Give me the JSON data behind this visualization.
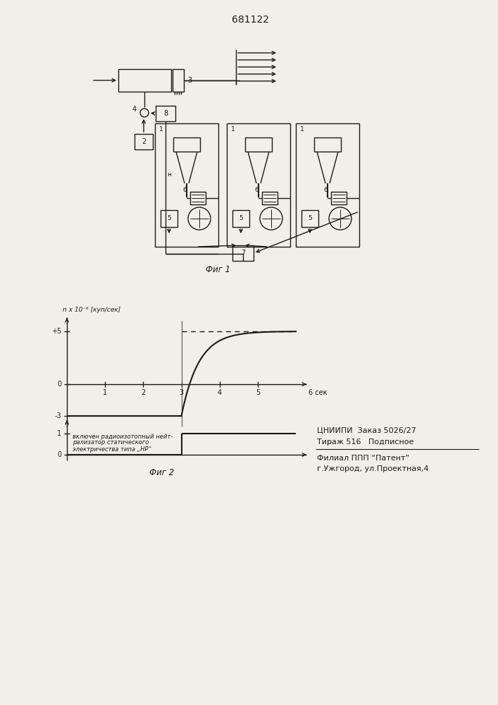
{
  "title": "681122",
  "fig1_label": "Фиг 1",
  "fig2_label": "Фиг 2",
  "graph_ylabel": "n x 10⁻⁶ [куп/сек]",
  "bottom_text_line1": "включен радиоизотопный нейт-",
  "bottom_text_line2": "рализатор статического",
  "bottom_text_line3": "электричества типа „НР“",
  "info_line1": "ЦНИИПИ  Заказ 5026/27",
  "info_line2": "Тираж 516   Подписное",
  "info_line3": "Филиал ППП “Патент”",
  "info_line4": "г.Ужгород, ул.Проектная,4",
  "bg_color": "#f0efe8",
  "line_color": "#1a1a1a"
}
